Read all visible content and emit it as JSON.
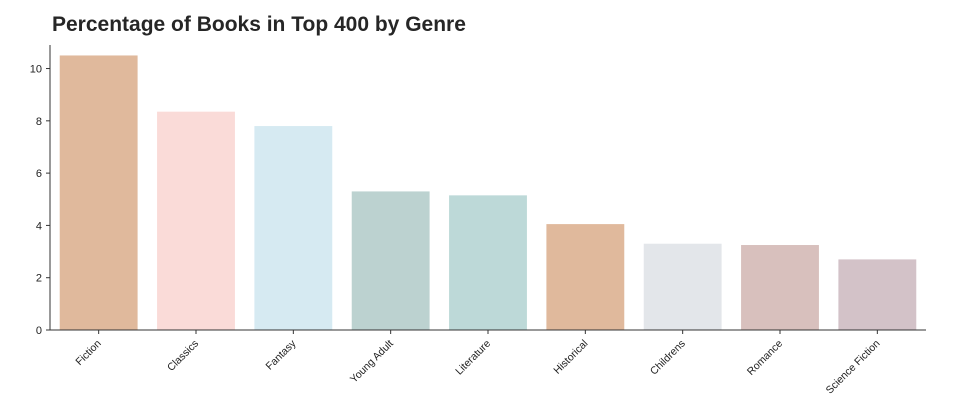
{
  "chart_data": {
    "type": "bar",
    "title": "Percentage of Books in Top 400 by Genre",
    "xlabel": "",
    "ylabel": "",
    "categories": [
      "Fiction",
      "Classics",
      "Fantasy",
      "Young Adult",
      "Literature",
      "Historical",
      "Childrens",
      "Romance",
      "Science Fiction"
    ],
    "values": [
      10.5,
      8.35,
      7.8,
      5.3,
      5.15,
      4.05,
      3.3,
      3.25,
      2.7
    ],
    "colors": [
      "#e0b99c",
      "#fadbd8",
      "#d6eaf2",
      "#bcd2d0",
      "#bdd9d8",
      "#e0b99c",
      "#e3e6ea",
      "#d8c0bd",
      "#d3c2c8"
    ],
    "ylim": [
      0,
      10.9
    ],
    "yticks": [
      0,
      2,
      4,
      6,
      8,
      10
    ],
    "grid": false,
    "legend": "none"
  }
}
